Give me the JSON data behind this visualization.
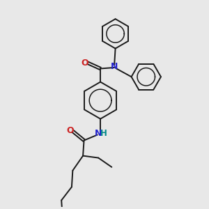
{
  "background_color": "#e8e8e8",
  "bond_color": "#1a1a1a",
  "N_color": "#2222cc",
  "O_color": "#cc2222",
  "NH_color": "#008888",
  "figsize": [
    3.0,
    3.0
  ],
  "dpi": 100,
  "xlim": [
    0,
    10
  ],
  "ylim": [
    0,
    10
  ]
}
